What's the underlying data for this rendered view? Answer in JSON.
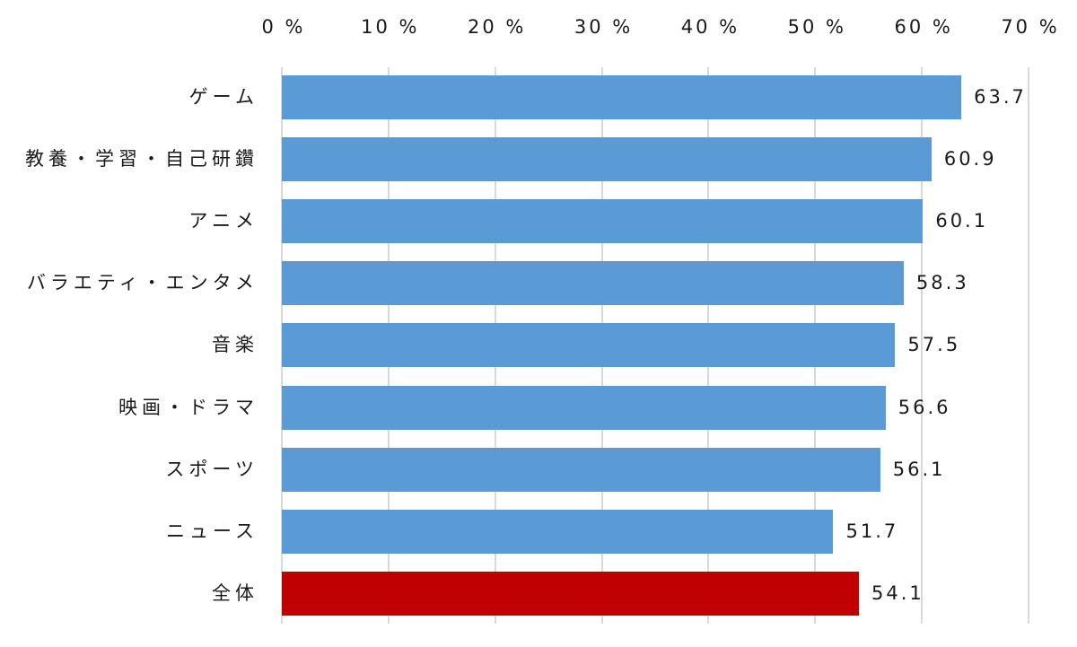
{
  "chart_data": {
    "type": "bar",
    "orientation": "horizontal",
    "title": "",
    "xlabel": "",
    "ylabel": "",
    "xlim": [
      0,
      70
    ],
    "x_ticks": [
      "0 %",
      "10 %",
      "20 %",
      "30 %",
      "40 %",
      "50 %",
      "60 %",
      "70 %"
    ],
    "x_axis_position": "top",
    "grid": true,
    "legend": null,
    "categories": [
      "ゲーム",
      "教養・学習・自己研鑽",
      "アニメ",
      "バラエティ・エンタメ",
      "音楽",
      "映画・ドラマ",
      "スポーツ",
      "ニュース",
      "全体"
    ],
    "values": [
      63.7,
      60.9,
      60.1,
      58.3,
      57.5,
      56.6,
      56.1,
      51.7,
      54.1
    ],
    "value_labels": [
      "63.7",
      "60.9",
      "60.1",
      "58.3",
      "57.5",
      "56.6",
      "56.1",
      "51.7",
      "54.1"
    ],
    "colors": [
      "#5b9bd5",
      "#5b9bd5",
      "#5b9bd5",
      "#5b9bd5",
      "#5b9bd5",
      "#5b9bd5",
      "#5b9bd5",
      "#5b9bd5",
      "#c00000"
    ]
  },
  "colors": {
    "bar": "#5b9bd5",
    "highlight": "#c00000",
    "grid": "#d9d9d9"
  }
}
